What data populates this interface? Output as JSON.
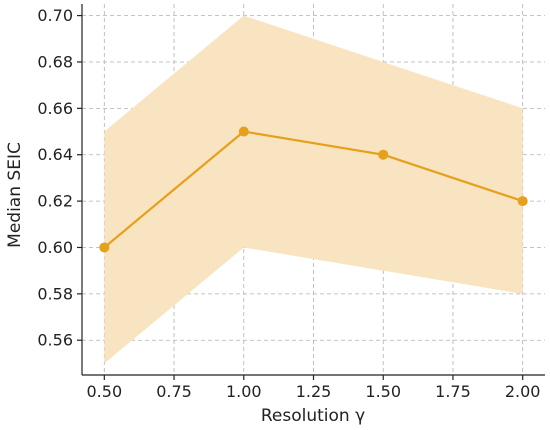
{
  "chart_data": {
    "type": "line",
    "title": "",
    "xlabel": "Resolution γ",
    "ylabel": "Median SEIC",
    "x": [
      0.5,
      1.0,
      1.5,
      2.0
    ],
    "series": [
      {
        "values": [
          0.6,
          0.65,
          0.64,
          0.62
        ],
        "lower": [
          0.55,
          0.6,
          0.59,
          0.58
        ],
        "upper": [
          0.65,
          0.7,
          0.68,
          0.66
        ],
        "color": "#e6a11c",
        "band_color": "#f8e4c0"
      }
    ],
    "xlim": [
      0.42,
      2.08
    ],
    "ylim": [
      0.545,
      0.705
    ],
    "xticks": [
      0.5,
      0.75,
      1.0,
      1.25,
      1.5,
      1.75,
      2.0
    ],
    "xtick_labels": [
      "0.50",
      "0.75",
      "1.00",
      "1.25",
      "1.50",
      "1.75",
      "2.00"
    ],
    "yticks": [
      0.56,
      0.58,
      0.6,
      0.62,
      0.64,
      0.66,
      0.68,
      0.7
    ],
    "ytick_labels": [
      "0.56",
      "0.58",
      "0.60",
      "0.62",
      "0.64",
      "0.66",
      "0.68",
      "0.70"
    ],
    "grid": true,
    "legend": "none"
  }
}
